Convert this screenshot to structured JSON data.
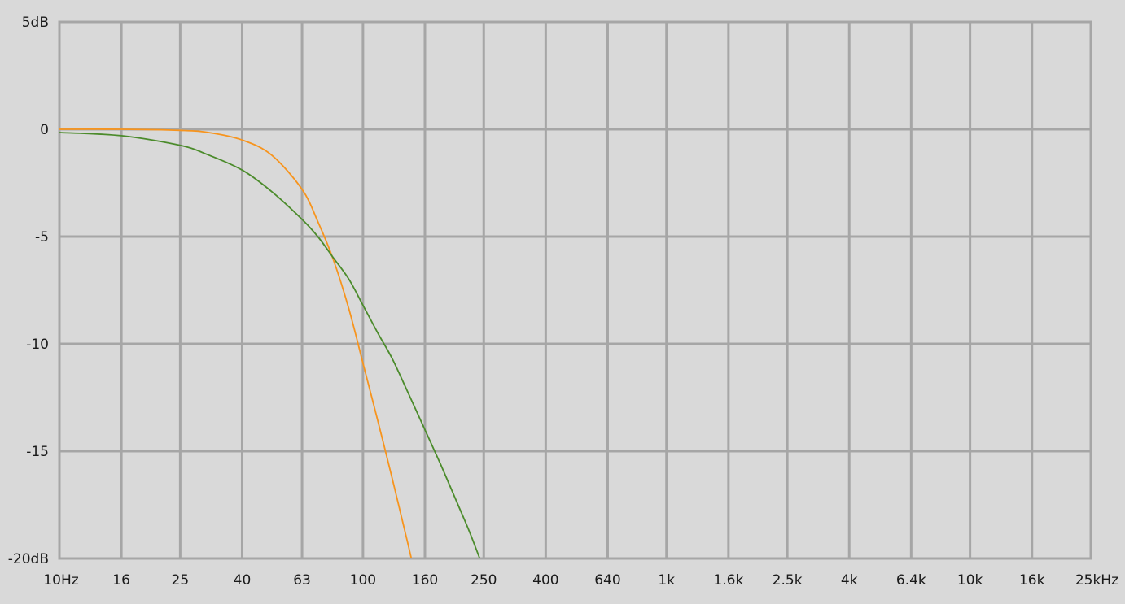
{
  "chart_data": {
    "type": "line",
    "x_scale": "log",
    "xlim": [
      10,
      25000
    ],
    "ylim": [
      -20,
      5
    ],
    "grid": true,
    "x_ticks": [
      {
        "value": 10,
        "label": "10Hz"
      },
      {
        "value": 16,
        "label": "16"
      },
      {
        "value": 25,
        "label": "25"
      },
      {
        "value": 40,
        "label": "40"
      },
      {
        "value": 63,
        "label": "63"
      },
      {
        "value": 100,
        "label": "100"
      },
      {
        "value": 160,
        "label": "160"
      },
      {
        "value": 250,
        "label": "250"
      },
      {
        "value": 400,
        "label": "400"
      },
      {
        "value": 640,
        "label": "640"
      },
      {
        "value": 1000,
        "label": "1k"
      },
      {
        "value": 1600,
        "label": "1.6k"
      },
      {
        "value": 2500,
        "label": "2.5k"
      },
      {
        "value": 4000,
        "label": "4k"
      },
      {
        "value": 6400,
        "label": "6.4k"
      },
      {
        "value": 10000,
        "label": "10k"
      },
      {
        "value": 16000,
        "label": "16k"
      },
      {
        "value": 25000,
        "label": "25kHz"
      }
    ],
    "y_ticks": [
      {
        "value": 5,
        "label": "5dB"
      },
      {
        "value": 0,
        "label": "0"
      },
      {
        "value": -5,
        "label": "-5"
      },
      {
        "value": -10,
        "label": "-10"
      },
      {
        "value": -15,
        "label": "-15"
      },
      {
        "value": -20,
        "label": "-20dB"
      }
    ],
    "series": [
      {
        "color": "#f7941d",
        "x": [
          10,
          16,
          25,
          31,
          40,
          50,
          63,
          71,
          80,
          90,
          100,
          112,
          125,
          140,
          150
        ],
        "y": [
          0,
          0,
          -0.05,
          -0.15,
          -0.5,
          -1.2,
          -2.8,
          -4.3,
          -6.1,
          -8.4,
          -10.9,
          -13.6,
          -16.3,
          -19.2,
          -21
        ]
      },
      {
        "color": "#4b8b2b",
        "x": [
          10,
          16,
          25,
          31,
          40,
          50,
          63,
          71,
          80,
          90,
          100,
          112,
          125,
          140,
          160,
          180,
          200,
          225,
          250
        ],
        "y": [
          -0.15,
          -0.3,
          -0.75,
          -1.2,
          -1.9,
          -2.9,
          -4.2,
          -5.0,
          -6.0,
          -7.0,
          -8.2,
          -9.5,
          -10.7,
          -12.2,
          -14.0,
          -15.6,
          -17.1,
          -18.8,
          -20.5
        ]
      }
    ]
  }
}
